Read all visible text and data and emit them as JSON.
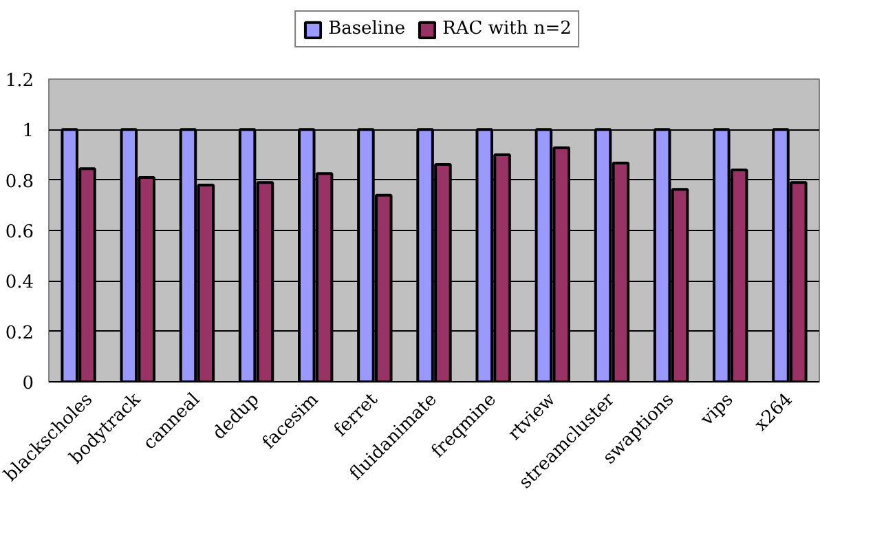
{
  "chart_data": {
    "type": "bar",
    "categories": [
      "blackscholes",
      "bodytrack",
      "canneal",
      "dedup",
      "facesim",
      "ferret",
      "fluidanimate",
      "freqmine",
      "rtview",
      "streamcluster",
      "swaptions",
      "vips",
      "x264"
    ],
    "series": [
      {
        "name": "Baseline",
        "color": "#9999ff",
        "values": [
          1,
          1,
          1,
          1,
          1,
          1,
          1,
          1,
          1,
          1,
          1,
          1,
          1
        ]
      },
      {
        "name": "RAC with n=2",
        "color": "#993366",
        "values": [
          0.845,
          0.81,
          0.78,
          0.79,
          0.826,
          0.74,
          0.862,
          0.9,
          0.928,
          0.867,
          0.763,
          0.84,
          0.79
        ]
      }
    ],
    "ylim": [
      0,
      1.2
    ],
    "yticks": [
      0,
      0.2,
      0.4,
      0.6,
      0.8,
      1,
      {
        "value": 1.2,
        "label": "1.2"
      }
    ],
    "grid": "y",
    "legend": "top"
  }
}
